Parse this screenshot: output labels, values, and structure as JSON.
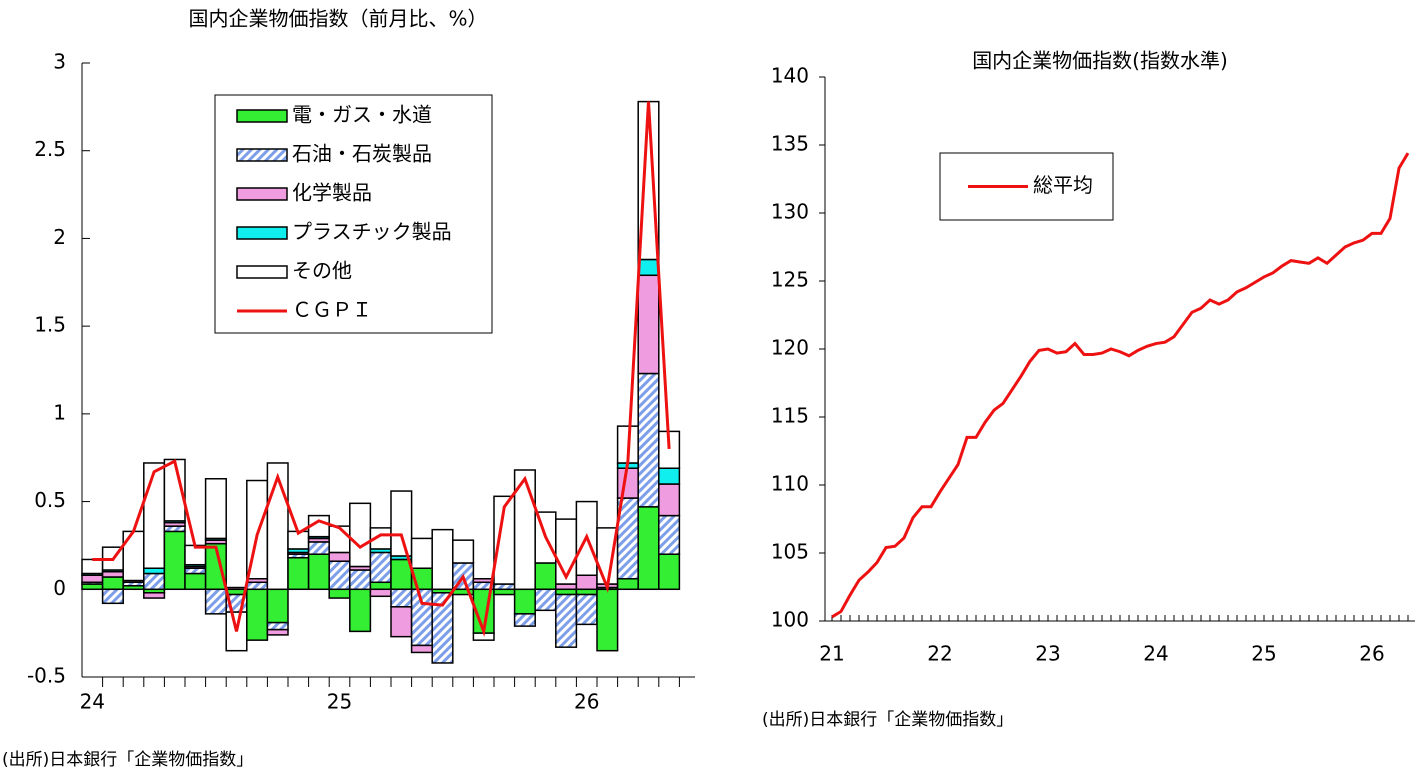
{
  "chart_data": [
    {
      "type": "bar",
      "stacked": true,
      "title": "国内企業物価指数（前月比、%）",
      "note": "(出所)日本銀行「企業物価指数」",
      "categories": [
        "24",
        null,
        null,
        null,
        null,
        null,
        null,
        null,
        null,
        null,
        null,
        null,
        "25",
        null,
        null,
        null,
        null,
        null,
        null,
        null,
        null,
        null,
        null,
        null,
        "26",
        null,
        null,
        null,
        null
      ],
      "ylim": [
        -0.5,
        3
      ],
      "yticks": [
        -0.5,
        0,
        0.5,
        1,
        1.5,
        2,
        2.5,
        3
      ],
      "legend": "upper-left",
      "series": [
        {
          "name": "電・ガス・水道",
          "color": "#33ee33",
          "values": [
            0.03,
            0.07,
            0.02,
            -0.02,
            0.33,
            0.09,
            0.26,
            -0.03,
            -0.29,
            -0.19,
            0.18,
            0.2,
            -0.05,
            -0.24,
            0.04,
            0.17,
            0.12,
            -0.02,
            -0.03,
            -0.25,
            -0.03,
            -0.14,
            0.15,
            -0.03,
            -0.03,
            -0.35,
            0.06,
            0.47,
            0.2
          ]
        },
        {
          "name": "石油・石炭製品",
          "color": "#7d9ee8",
          "hatch": true,
          "values": [
            0.01,
            -0.08,
            0.02,
            0.09,
            0.03,
            0.03,
            -0.14,
            -0.1,
            0.04,
            -0.04,
            0.02,
            0.07,
            0.16,
            0.11,
            0.17,
            -0.1,
            -0.32,
            -0.4,
            0.15,
            0.04,
            0.03,
            -0.07,
            -0.12,
            -0.3,
            -0.17,
            0.01,
            0.46,
            0.76,
            0.22
          ]
        },
        {
          "name": "化学製品",
          "color": "#f09ce0",
          "values": [
            0.04,
            0.03,
            0.01,
            -0.03,
            0.02,
            0.01,
            0.02,
            0.01,
            0.02,
            -0.03,
            0.01,
            0.02,
            0.05,
            0.02,
            -0.04,
            -0.17,
            -0.04,
            0,
            0,
            0.02,
            0,
            0,
            0,
            0.03,
            0.08,
            0.02,
            0.17,
            0.56,
            0.18
          ]
        },
        {
          "name": "プラスチック製品",
          "color": "#11eeee",
          "values": [
            0.01,
            0.01,
            0,
            0.03,
            0.01,
            0.01,
            0.01,
            0,
            0,
            0,
            0.02,
            0.01,
            0,
            0,
            0.02,
            0.02,
            0,
            0,
            0,
            0,
            0,
            0,
            0,
            0,
            0,
            0,
            0.03,
            0.09,
            0.09
          ]
        },
        {
          "name": "その他",
          "color": "#ffffff",
          "values": [
            0.08,
            0.13,
            0.28,
            0.6,
            0.35,
            0.11,
            0.34,
            -0.22,
            0.56,
            0.72,
            0.1,
            0.12,
            0.15,
            0.36,
            0.12,
            0.37,
            0.17,
            0.34,
            0.13,
            -0.04,
            0.5,
            0.68,
            0.29,
            0.37,
            0.42,
            0.32,
            0.21,
            0.9,
            0.21
          ]
        },
        {
          "name": "ＣＧＰＩ",
          "type": "line",
          "color": "#ee1111",
          "values": [
            0.17,
            0.17,
            0.33,
            0.67,
            0.73,
            0.24,
            0.24,
            -0.24,
            0.31,
            0.64,
            0.32,
            0.39,
            0.35,
            0.24,
            0.31,
            0.31,
            -0.08,
            -0.09,
            0.07,
            -0.24,
            0.47,
            0.63,
            0.3,
            0.07,
            0.3,
            0.01,
            0.73,
            2.78,
            0.8
          ]
        }
      ]
    },
    {
      "type": "line",
      "title": "国内企業物価指数(指数水準)",
      "note": "(出所)日本銀行「企業物価指数」",
      "x": [
        "21",
        null,
        null,
        null,
        null,
        null,
        null,
        null,
        null,
        null,
        null,
        null,
        "22",
        null,
        null,
        null,
        null,
        null,
        null,
        null,
        null,
        null,
        null,
        null,
        "23",
        null,
        null,
        null,
        null,
        null,
        null,
        null,
        null,
        null,
        null,
        null,
        "24",
        null,
        null,
        null,
        null,
        null,
        null,
        null,
        null,
        null,
        null,
        null,
        "25",
        null,
        null,
        null,
        null,
        null,
        null,
        null,
        null,
        null,
        null,
        null,
        "26",
        null,
        null,
        null,
        null
      ],
      "ylim": [
        100,
        140
      ],
      "yticks": [
        100,
        105,
        110,
        115,
        120,
        125,
        130,
        135,
        140
      ],
      "legend": "upper-left",
      "series": [
        {
          "name": "総平均",
          "color": "#ee1111",
          "values": [
            100.3,
            100.7,
            101.9,
            103.0,
            103.6,
            104.3,
            105.4,
            105.5,
            106.1,
            107.6,
            108.4,
            108.4,
            109.5,
            110.5,
            111.5,
            113.5,
            113.5,
            114.6,
            115.5,
            116.0,
            117.0,
            118.0,
            119.1,
            119.9,
            120.0,
            119.7,
            119.8,
            120.4,
            119.6,
            119.6,
            119.7,
            120.0,
            119.8,
            119.5,
            119.9,
            120.2,
            120.4,
            120.5,
            120.9,
            121.8,
            122.7,
            123.0,
            123.6,
            123.3,
            123.6,
            124.2,
            124.5,
            124.9,
            125.3,
            125.6,
            126.1,
            126.5,
            126.4,
            126.3,
            126.7,
            126.3,
            126.9,
            127.5,
            127.8,
            128.0,
            128.5,
            128.5,
            129.6,
            133.3,
            134.4
          ]
        }
      ]
    }
  ]
}
